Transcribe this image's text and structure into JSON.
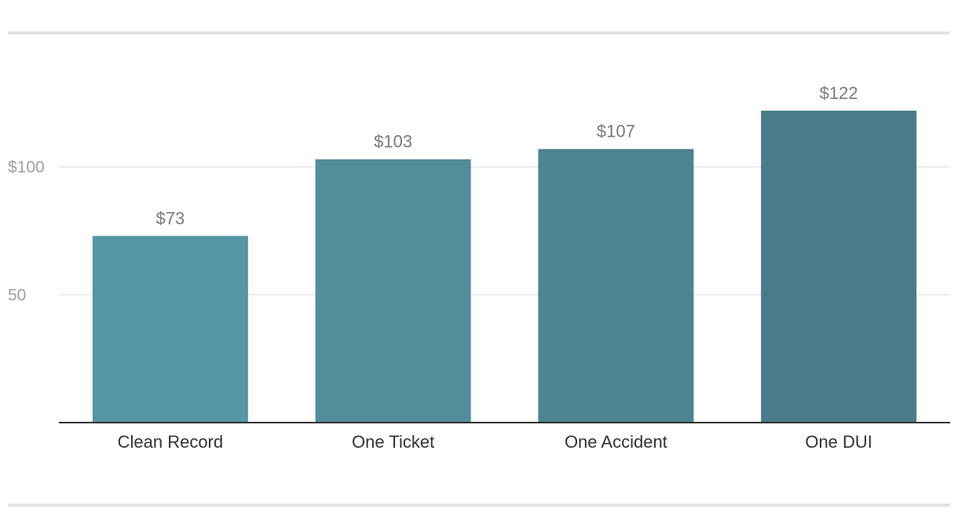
{
  "chart_data": {
    "type": "bar",
    "categories": [
      "Clean Record",
      "One Ticket",
      "One Accident",
      "One DUI"
    ],
    "values": [
      73,
      103,
      107,
      122
    ],
    "value_labels": [
      "$73",
      "$103",
      "$107",
      "$122"
    ],
    "title": "",
    "xlabel": "",
    "ylabel": "",
    "ylim": [
      0,
      135
    ],
    "yticks": [
      50,
      100
    ],
    "ytick_labels": [
      "50",
      "$100"
    ],
    "grid": true,
    "bar_colors": [
      "#5695a3",
      "#528d9a",
      "#4d8490",
      "#497c88"
    ]
  }
}
